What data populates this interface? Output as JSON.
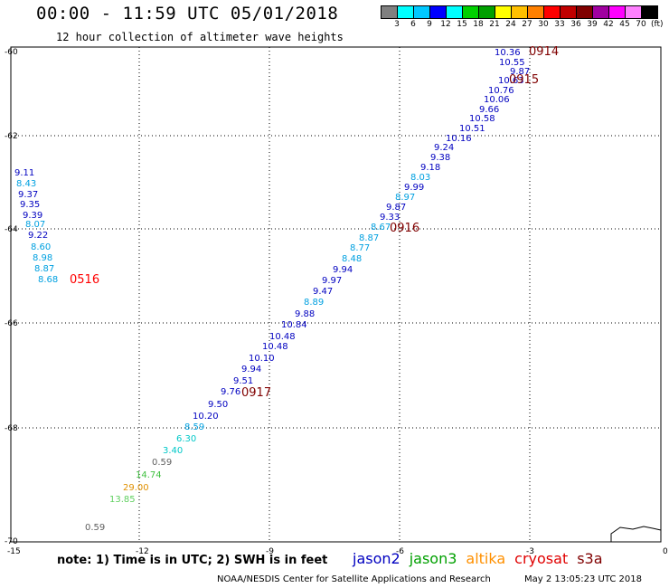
{
  "title": "00:00 - 11:59 UTC 05/01/2018",
  "subtitle": "12 hour collection of altimeter wave heights",
  "legend": {
    "colors": [
      "#808080",
      "#00ffff",
      "#00c8ff",
      "#0000ff",
      "#00ffff",
      "#00d000",
      "#00a000",
      "#ffff00",
      "#ffc000",
      "#ff8000",
      "#ff0000",
      "#c00000",
      "#800000",
      "#a000a0",
      "#ff00ff",
      "#ff80ff",
      "#000000"
    ],
    "labels": [
      "3",
      "6",
      "9",
      "12",
      "15",
      "18",
      "21",
      "24",
      "27",
      "30",
      "33",
      "36",
      "39",
      "42",
      "45",
      "70"
    ],
    "unit": "(ft)"
  },
  "axes": {
    "lat_labels": [
      "-60",
      "-62",
      "-64",
      "-66",
      "-68",
      "-70"
    ],
    "lon_labels": [
      "-15",
      "-12",
      "-9",
      "-6",
      "-3",
      "0"
    ]
  },
  "pass_labels": [
    {
      "text": "0914",
      "color": "#800000"
    },
    {
      "text": "0915",
      "color": "#800000"
    },
    {
      "text": "0916",
      "color": "#800000"
    },
    {
      "text": "0917",
      "color": "#800000"
    },
    {
      "text": "0516",
      "color": "#ff0000"
    }
  ],
  "track_values": [
    {
      "v": "10.36",
      "c": "#0000c0"
    },
    {
      "v": "10.55",
      "c": "#0000c0"
    },
    {
      "v": "9.87",
      "c": "#0000c0"
    },
    {
      "v": "10.63",
      "c": "#0000c0"
    },
    {
      "v": "10.76",
      "c": "#0000c0"
    },
    {
      "v": "10.06",
      "c": "#0000c0"
    },
    {
      "v": "9.66",
      "c": "#0000c0"
    },
    {
      "v": "10.58",
      "c": "#0000c0"
    },
    {
      "v": "10.51",
      "c": "#0000c0"
    },
    {
      "v": "10.16",
      "c": "#0000c0"
    },
    {
      "v": "9.24",
      "c": "#0000c0"
    },
    {
      "v": "9.38",
      "c": "#0000c0"
    },
    {
      "v": "9.18",
      "c": "#0000c0"
    },
    {
      "v": "8.03",
      "c": "#00a0e0"
    },
    {
      "v": "9.99",
      "c": "#0000c0"
    },
    {
      "v": "8.97",
      "c": "#00a0e0"
    },
    {
      "v": "9.87",
      "c": "#0000c0"
    },
    {
      "v": "9.33",
      "c": "#0000c0"
    },
    {
      "v": "8.67",
      "c": "#00a0e0"
    },
    {
      "v": "8.87",
      "c": "#00a0e0"
    },
    {
      "v": "8.77",
      "c": "#00a0e0"
    },
    {
      "v": "8.48",
      "c": "#00a0e0"
    },
    {
      "v": "9.94",
      "c": "#0000c0"
    },
    {
      "v": "9.97",
      "c": "#0000c0"
    },
    {
      "v": "9.47",
      "c": "#0000c0"
    },
    {
      "v": "8.89",
      "c": "#00a0e0"
    },
    {
      "v": "9.88",
      "c": "#0000c0"
    },
    {
      "v": "10.84",
      "c": "#0000c0"
    },
    {
      "v": "10.48",
      "c": "#0000c0"
    },
    {
      "v": "10.48",
      "c": "#0000c0"
    },
    {
      "v": "10.10",
      "c": "#0000c0"
    },
    {
      "v": "9.94",
      "c": "#0000c0"
    },
    {
      "v": "9.51",
      "c": "#0000c0"
    },
    {
      "v": "9.76",
      "c": "#0000c0"
    },
    {
      "v": "9.50",
      "c": "#0000c0"
    },
    {
      "v": "10.20",
      "c": "#0000c0"
    },
    {
      "v": "8.59",
      "c": "#00a0e0"
    },
    {
      "v": "6.30",
      "c": "#00c8c8"
    },
    {
      "v": "3.40",
      "c": "#00c8c8"
    },
    {
      "v": "0.59",
      "c": "#606060"
    },
    {
      "v": "14.74",
      "c": "#40c040"
    },
    {
      "v": "29.00",
      "c": "#e09000"
    },
    {
      "v": "13.85",
      "c": "#60d060"
    },
    {
      "v": "0.59",
      "c": "#606060"
    }
  ],
  "west_values": [
    {
      "v": "9.11",
      "c": "#0000c0"
    },
    {
      "v": "8.43",
      "c": "#00a0e0"
    },
    {
      "v": "9.37",
      "c": "#0000c0"
    },
    {
      "v": "9.35",
      "c": "#0000c0"
    },
    {
      "v": "9.39",
      "c": "#0000c0"
    },
    {
      "v": "8.07",
      "c": "#00a0e0"
    },
    {
      "v": "9.22",
      "c": "#0000c0"
    },
    {
      "v": "8.60",
      "c": "#00a0e0"
    },
    {
      "v": "8.98",
      "c": "#00a0e0"
    },
    {
      "v": "8.87",
      "c": "#00a0e0"
    },
    {
      "v": "8.68",
      "c": "#00a0e0"
    }
  ],
  "footer": {
    "note": "note: 1) Time is in UTC; 2) SWH is in feet",
    "satellites": [
      {
        "name": "jason2",
        "color": "#0000c0"
      },
      {
        "name": "jason3",
        "color": "#00a000"
      },
      {
        "name": "altika",
        "color": "#ff9000"
      },
      {
        "name": "cryosat",
        "color": "#e00000"
      },
      {
        "name": "s3a",
        "color": "#800000"
      }
    ],
    "credit": "NOAA/NESDIS Center for Satellite Applications and Research",
    "timestamp": "May  2 13:05:23 UTC 2018"
  }
}
